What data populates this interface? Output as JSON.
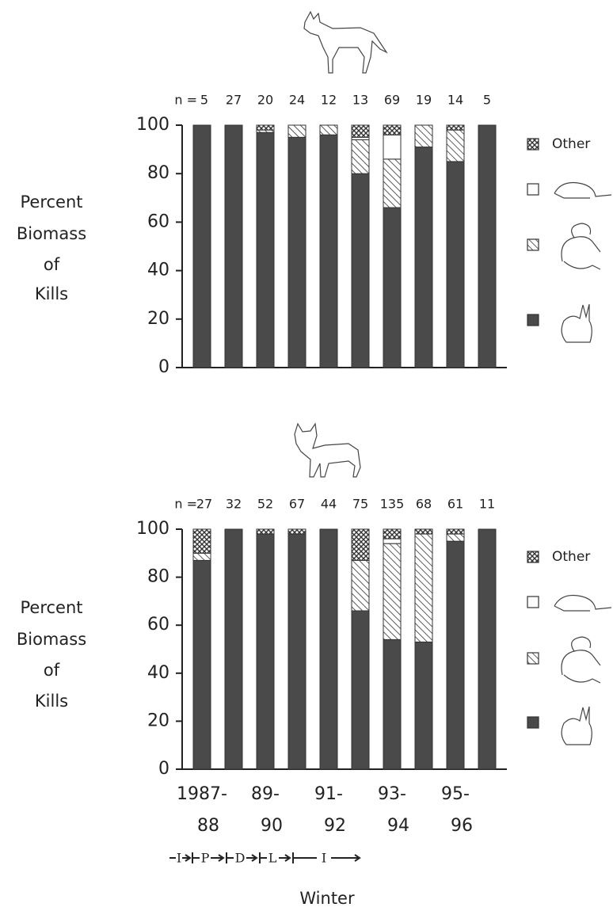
{
  "chart_data": [
    {
      "type": "stacked_bar",
      "ylabel": [
        "Percent",
        "Biomass",
        "of",
        "Kills"
      ],
      "n_label": "n =",
      "n": [
        5,
        27,
        20,
        24,
        12,
        13,
        69,
        19,
        14,
        5
      ],
      "ylim": [
        0,
        100
      ],
      "yticks": [
        0,
        20,
        40,
        60,
        80,
        100
      ],
      "series": [
        {
          "color": "#4a4a4a",
          "pattern": "solid",
          "values": [
            100,
            100,
            97,
            95,
            96,
            80,
            66,
            91,
            85,
            100
          ]
        },
        {
          "color": "#333333",
          "pattern": "diagonal",
          "values": [
            0,
            0,
            1,
            5,
            4,
            14,
            20,
            9,
            13,
            0
          ]
        },
        {
          "color": "#ffffff",
          "pattern": "none",
          "values": [
            0,
            0,
            0,
            0,
            0,
            1,
            10,
            0,
            0,
            0
          ]
        },
        {
          "name": "Other",
          "color": "#333333",
          "pattern": "crosshatch",
          "values": [
            0,
            0,
            2,
            0,
            0,
            5,
            4,
            0,
            2,
            0
          ]
        }
      ]
    },
    {
      "type": "stacked_bar",
      "ylabel": [
        "Percent",
        "Biomass",
        "of",
        "Kills"
      ],
      "n_label": "n =",
      "n": [
        27,
        32,
        52,
        67,
        44,
        75,
        135,
        68,
        61,
        11
      ],
      "ylim": [
        0,
        100
      ],
      "yticks": [
        0,
        20,
        40,
        60,
        80,
        100
      ],
      "categories": [
        [
          "1987-",
          "88"
        ],
        null,
        [
          "89-",
          "90"
        ],
        null,
        [
          "91-",
          "92"
        ],
        null,
        [
          "93-",
          "94"
        ],
        null,
        [
          "95-",
          "96"
        ],
        null
      ],
      "phases": [
        "I",
        "P",
        "D",
        "L",
        "I"
      ],
      "xlabel": "Winter",
      "series": [
        {
          "color": "#4a4a4a",
          "pattern": "solid",
          "values": [
            87,
            100,
            98,
            98,
            100,
            66,
            54,
            53,
            95,
            100
          ]
        },
        {
          "color": "#333333",
          "pattern": "diagonal",
          "values": [
            3,
            0,
            0,
            0,
            0,
            21,
            40,
            45,
            3,
            0
          ]
        },
        {
          "color": "#ffffff",
          "pattern": "none",
          "values": [
            0,
            0,
            0,
            0,
            0,
            0,
            2,
            0,
            0,
            0
          ]
        },
        {
          "name": "Other",
          "color": "#333333",
          "pattern": "crosshatch",
          "values": [
            10,
            0,
            2,
            2,
            0,
            13,
            4,
            2,
            2,
            0
          ]
        }
      ]
    }
  ]
}
